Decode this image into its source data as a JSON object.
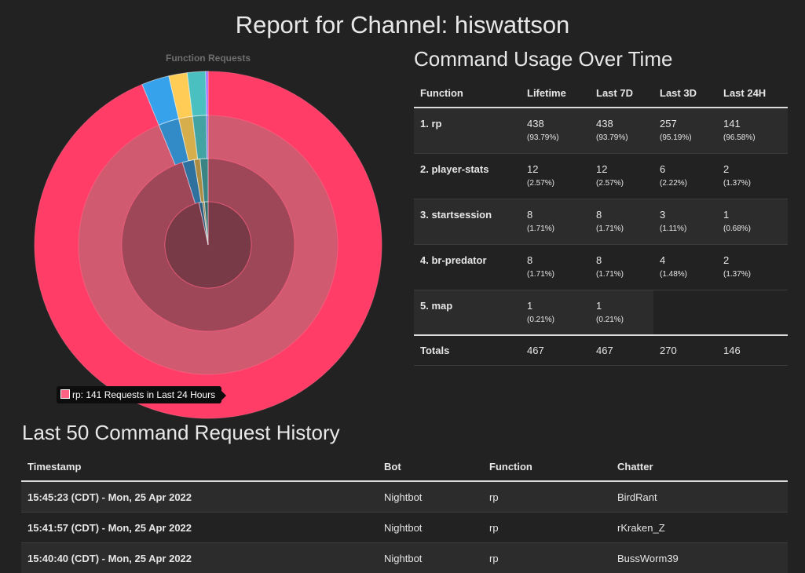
{
  "page": {
    "title": "Report for Channel: hiswattson"
  },
  "chart_data": {
    "type": "pie",
    "title": "Function Requests",
    "categories": [
      "rp",
      "player-stats",
      "startsession",
      "br-predator",
      "map"
    ],
    "colors": [
      "#ff6384",
      "#36a2eb",
      "#ffcd56",
      "#4bc0c0",
      "#9966ff"
    ],
    "series": [
      {
        "name": "Lifetime",
        "values": [
          438,
          12,
          8,
          8,
          1
        ]
      },
      {
        "name": "Last 7D",
        "values": [
          438,
          12,
          8,
          8,
          1
        ]
      },
      {
        "name": "Last 3D",
        "values": [
          257,
          6,
          3,
          4,
          0
        ]
      },
      {
        "name": "Last 24H",
        "values": [
          141,
          2,
          1,
          2,
          0
        ]
      }
    ],
    "tooltip": "rp: 141 Requests in Last 24 Hours"
  },
  "usage": {
    "title": "Command Usage Over Time",
    "headers": [
      "Function",
      "Lifetime",
      "Last 7D",
      "Last 3D",
      "Last 24H"
    ],
    "rows": [
      {
        "fn": "1. rp",
        "cells": [
          {
            "count": "438",
            "pct": "(93.79%)"
          },
          {
            "count": "438",
            "pct": "(93.79%)"
          },
          {
            "count": "257",
            "pct": "(95.19%)"
          },
          {
            "count": "141",
            "pct": "(96.58%)"
          }
        ]
      },
      {
        "fn": "2. player-stats",
        "cells": [
          {
            "count": "12",
            "pct": "(2.57%)"
          },
          {
            "count": "12",
            "pct": "(2.57%)"
          },
          {
            "count": "6",
            "pct": "(2.22%)"
          },
          {
            "count": "2",
            "pct": "(1.37%)"
          }
        ]
      },
      {
        "fn": "3. startsession",
        "cells": [
          {
            "count": "8",
            "pct": "(1.71%)"
          },
          {
            "count": "8",
            "pct": "(1.71%)"
          },
          {
            "count": "3",
            "pct": "(1.11%)"
          },
          {
            "count": "1",
            "pct": "(0.68%)"
          }
        ]
      },
      {
        "fn": "4. br-predator",
        "cells": [
          {
            "count": "8",
            "pct": "(1.71%)"
          },
          {
            "count": "8",
            "pct": "(1.71%)"
          },
          {
            "count": "4",
            "pct": "(1.48%)"
          },
          {
            "count": "2",
            "pct": "(1.37%)"
          }
        ]
      },
      {
        "fn": "5. map",
        "cells": [
          {
            "count": "1",
            "pct": "(0.21%)"
          },
          {
            "count": "1",
            "pct": "(0.21%)"
          },
          {
            "count": "",
            "pct": ""
          },
          {
            "count": "",
            "pct": ""
          }
        ]
      }
    ],
    "totals": {
      "label": "Totals",
      "values": [
        "467",
        "467",
        "270",
        "146"
      ]
    }
  },
  "history": {
    "title": "Last 50 Command Request History",
    "headers": [
      "Timestamp",
      "Bot",
      "Function",
      "Chatter"
    ],
    "rows": [
      {
        "timestamp": "15:45:23 (CDT) - Mon, 25 Apr 2022",
        "bot": "Nightbot",
        "function": "rp",
        "chatter": "BirdRant"
      },
      {
        "timestamp": "15:41:57 (CDT) - Mon, 25 Apr 2022",
        "bot": "Nightbot",
        "function": "rp",
        "chatter": "rKraken_Z"
      },
      {
        "timestamp": "15:40:40 (CDT) - Mon, 25 Apr 2022",
        "bot": "Nightbot",
        "function": "rp",
        "chatter": "BussWorm39"
      }
    ]
  }
}
